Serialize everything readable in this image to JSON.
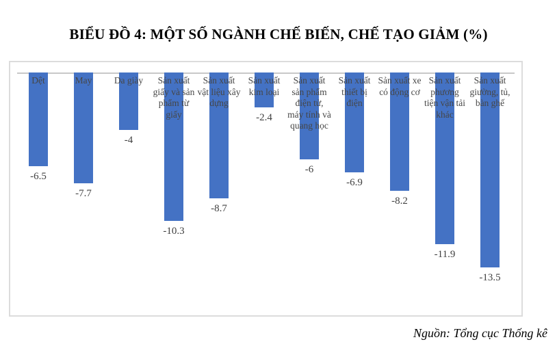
{
  "page": {
    "title": "BIỂU ĐỒ 4: MỘT SỐ NGÀNH CHẾ BIẾN, CHẾ TẠO GIẢM (%)",
    "source_note": "Nguồn: Tổng cục Thống kê"
  },
  "colors": {
    "bar": "#4472C4",
    "chart_border": "#DCDCDC",
    "axis_line": "#C8C8C8",
    "category_label": "#464646",
    "value_label": "#404040",
    "title_text": "#000000"
  },
  "chart_data": {
    "type": "bar",
    "title": "BIỂU ĐỒ 4: MỘT SỐ NGÀNH CHẾ BIẾN, CHẾ TẠO GIẢM (%)",
    "categories": [
      "Dệt",
      "May",
      "Da giày",
      "Sản xuất giấy và sản phẩm từ giấy",
      "Sản xuất vật liệu xây dựng",
      "Sản xuất kim loại",
      "Sản xuất sản phẩm điện tử, máy tính và quang học",
      "Sản xuất thiết bị điện",
      "Sản xuất xe có động cơ",
      "Sản xuất phương tiện vận tải khác",
      "Sản xuất giường, tủ, bàn ghế"
    ],
    "values": [
      -6.5,
      -7.7,
      -4,
      -10.3,
      -8.7,
      -2.4,
      -6,
      -6.9,
      -8.2,
      -11.9,
      -13.5
    ],
    "unit": "%",
    "xlabel": "",
    "ylabel": "",
    "ylim": [
      -14.5,
      0
    ],
    "grid": false,
    "legend": false,
    "bars_from_top": true,
    "value_labels_shown": true,
    "source": "Nguồn: Tổng cục Thống kê"
  }
}
